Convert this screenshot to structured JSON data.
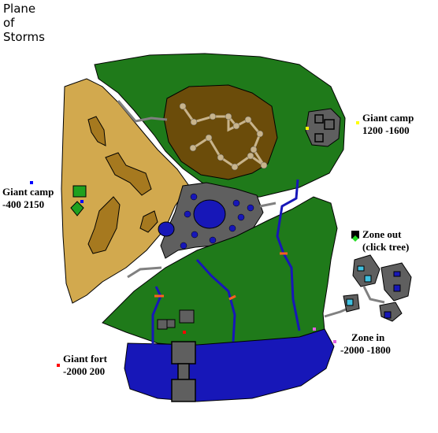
{
  "title": {
    "line1": "Plane",
    "line2": "of",
    "line3": "Storms"
  },
  "labels": {
    "giant_camp_ne": {
      "name": "Giant camp",
      "coords": "1200 -1600"
    },
    "giant_camp_w": {
      "name": "Giant camp",
      "coords": "-400 2150"
    },
    "zone_out": {
      "name": "Zone out",
      "note": "(click tree)"
    },
    "zone_in": {
      "name": "Zone in",
      "coords": "-2000 -1800"
    },
    "giant_fort": {
      "name": "Giant fort",
      "coords": "-2000 200"
    }
  },
  "colors": {
    "grass": "#1f7a1a",
    "sand": "#d2a94e",
    "sand_patch": "#a6791f",
    "dirt": "#6b4c0a",
    "stone": "#5f5f5f",
    "water": "#1717b8",
    "path": "#808080",
    "marker_yellow": "#ffff00",
    "marker_blue": "#0000ff",
    "marker_red": "#ff0000",
    "marker_pink": "#e060e0",
    "zone_out_icon": "#22dd22"
  }
}
